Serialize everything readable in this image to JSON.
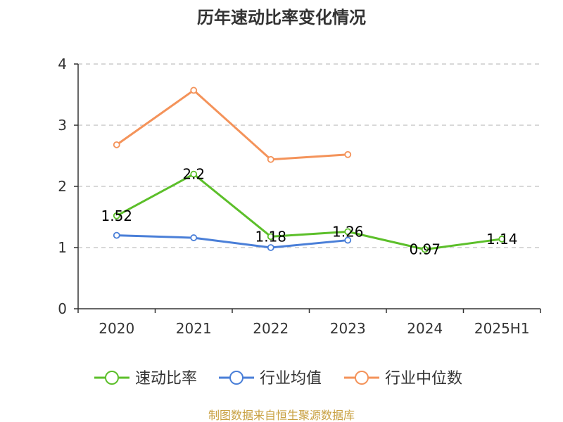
{
  "chart_data": {
    "type": "line",
    "title": "历年速动比率变化情况",
    "categories": [
      "2020",
      "2021",
      "2022",
      "2023",
      "2024",
      "2025H1"
    ],
    "yticks": [
      "0",
      "1",
      "2",
      "3",
      "4"
    ],
    "ylim": [
      0,
      4
    ],
    "grid": "horizontal dashed",
    "legend_position": "bottom",
    "series": [
      {
        "name": "速动比率",
        "color": "#5cbf2a",
        "values": [
          1.52,
          2.2,
          1.18,
          1.26,
          0.97,
          1.14
        ],
        "labels": [
          "1.52",
          "2.2",
          "1.18",
          "1.26",
          "0.97",
          "1.14"
        ]
      },
      {
        "name": "行业均值",
        "color": "#4a7fd8",
        "values": [
          1.2,
          1.16,
          1.0,
          1.12,
          null,
          null
        ]
      },
      {
        "name": "行业中位数",
        "color": "#f4935a",
        "values": [
          2.68,
          3.57,
          2.44,
          2.52,
          null,
          null
        ]
      }
    ]
  },
  "footer": {
    "source": "制图数据来自恒生聚源数据库"
  }
}
